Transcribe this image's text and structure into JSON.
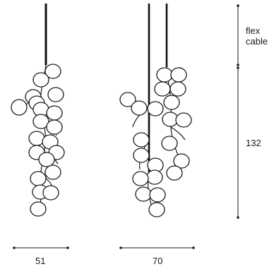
{
  "labels": {
    "cable": "flex\ncable",
    "height": "132",
    "width_left": "51",
    "width_right": "70"
  },
  "colors": {
    "line": "#1a1a1a",
    "globe_fill": "#ffffff",
    "cable": "#111111"
  }
}
